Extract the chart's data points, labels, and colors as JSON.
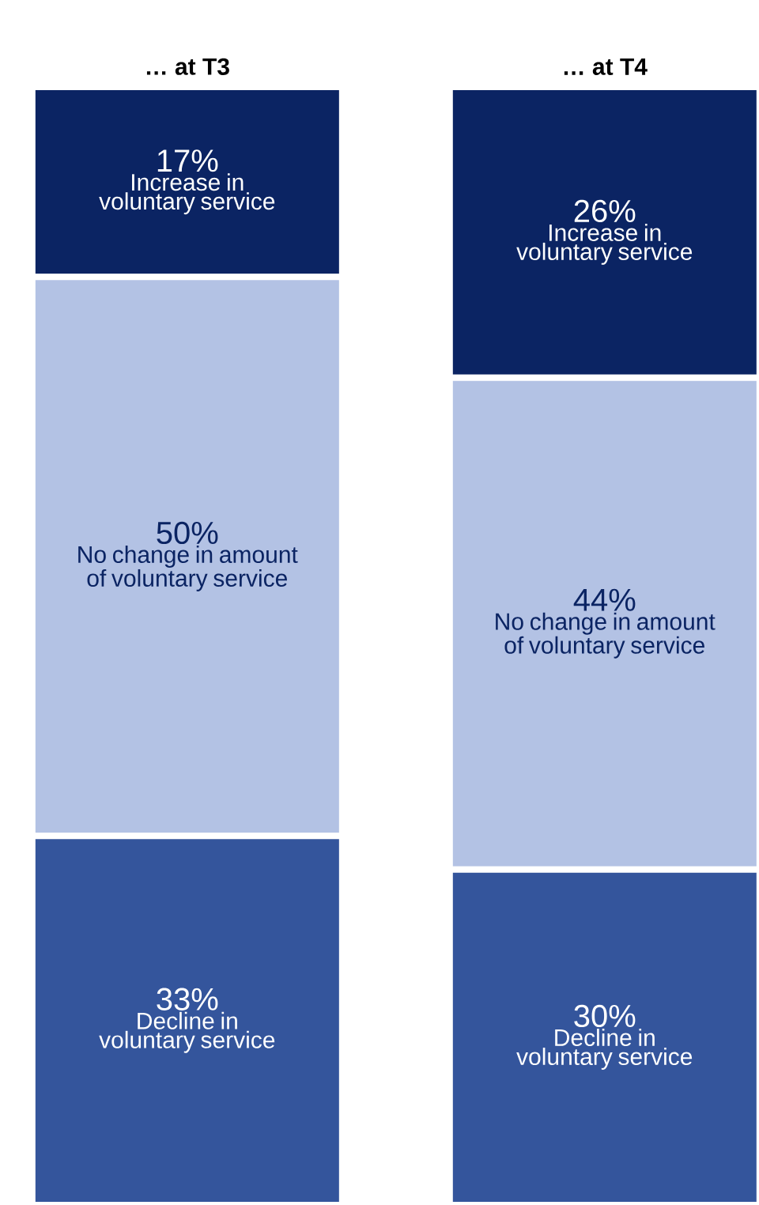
{
  "chart_data": {
    "type": "bar",
    "stacked": true,
    "categories": [
      "… at T3",
      "… at T4"
    ],
    "series": [
      {
        "name": "Decline in voluntary service",
        "color": "#34559c",
        "values": [
          33,
          30
        ],
        "value_labels": [
          "33%",
          "30%"
        ]
      },
      {
        "name": "No change in amount of voluntary service",
        "color": "#b3c2e4",
        "values": [
          50,
          44
        ],
        "value_labels": [
          "50%",
          "44%"
        ]
      },
      {
        "name": "Increase in voluntary service",
        "color": "#0b2463",
        "values": [
          17,
          26
        ],
        "value_labels": [
          "17%",
          "26%"
        ]
      }
    ]
  }
}
